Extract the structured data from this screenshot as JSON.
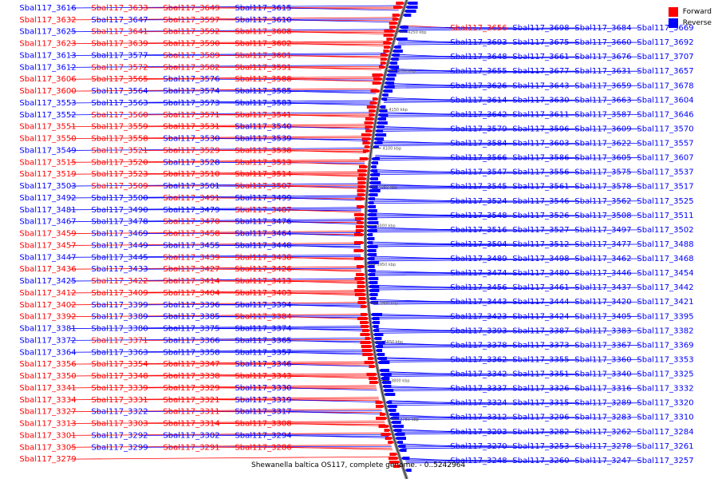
{
  "caption": "Shewanella baltica OS117, complete genome. - 0..5242964",
  "legend": [
    {
      "label": "Forward",
      "color": "#ff0000"
    },
    {
      "label": "Reverse",
      "color": "#0000ff"
    }
  ],
  "tick_labels": [
    "4250 kbp",
    "4200 kbp",
    "4150 kbp",
    "4100 kbp",
    "4050 kbp",
    "4000 kbp",
    "3950 kbp",
    "3900 kbp",
    "3850 kbp",
    "3800 kbp",
    "3750 kbp"
  ],
  "left_labels": [
    {
      "t": "Sbal117_3616",
      "s": "r"
    },
    {
      "t": "Sbal117_3633",
      "s": "f"
    },
    {
      "t": "Sbal117_3649",
      "s": "f"
    },
    {
      "t": "Sbal117_3615",
      "s": "r"
    },
    {
      "t": "Sbal117_3632",
      "s": "f"
    },
    {
      "t": "Sbal117_3647",
      "s": "r"
    },
    {
      "t": "Sbal117_3597",
      "s": "f"
    },
    {
      "t": "Sbal117_3610",
      "s": "r"
    },
    {
      "t": "Sbal117_3625",
      "s": "r"
    },
    {
      "t": "Sbal117_3641",
      "s": "f"
    },
    {
      "t": "Sbal117_3592",
      "s": "f"
    },
    {
      "t": "Sbal117_3608",
      "s": "f"
    },
    {
      "t": "Sbal117_3623",
      "s": "f"
    },
    {
      "t": "Sbal117_3639",
      "s": "f"
    },
    {
      "t": "Sbal117_3590",
      "s": "f"
    },
    {
      "t": "Sbal117_3602",
      "s": "f"
    },
    {
      "t": "Sbal117_3613",
      "s": "r"
    },
    {
      "t": "Sbal117_3577",
      "s": "r"
    },
    {
      "t": "Sbal117_3589",
      "s": "f"
    },
    {
      "t": "Sbal117_3601",
      "s": "f"
    },
    {
      "t": "Sbal117_3612",
      "s": "r"
    },
    {
      "t": "Sbal117_3572",
      "s": "f"
    },
    {
      "t": "Sbal117_3582",
      "s": "f"
    },
    {
      "t": "Sbal117_3591",
      "s": "f"
    },
    {
      "t": "Sbal117_3606",
      "s": "f"
    },
    {
      "t": "Sbal117_3565",
      "s": "f"
    },
    {
      "t": "Sbal117_3576",
      "s": "r"
    },
    {
      "t": "Sbal117_3588",
      "s": "f"
    },
    {
      "t": "Sbal117_3600",
      "s": "f"
    },
    {
      "t": "Sbal117_3564",
      "s": "r"
    },
    {
      "t": "Sbal117_3574",
      "s": "r"
    },
    {
      "t": "Sbal117_3585",
      "s": "r"
    },
    {
      "t": "Sbal117_3553",
      "s": "r"
    },
    {
      "t": "Sbal117_3563",
      "s": "r"
    },
    {
      "t": "Sbal117_3573",
      "s": "r"
    },
    {
      "t": "Sbal117_3583",
      "s": "r"
    },
    {
      "t": "Sbal117_3552",
      "s": "r"
    },
    {
      "t": "Sbal117_3560",
      "s": "f"
    },
    {
      "t": "Sbal117_3571",
      "s": "f"
    },
    {
      "t": "Sbal117_3541",
      "s": "f"
    },
    {
      "t": "Sbal117_3551",
      "s": "f"
    },
    {
      "t": "Sbal117_3559",
      "s": "f"
    },
    {
      "t": "Sbal117_3531",
      "s": "f"
    },
    {
      "t": "Sbal117_3540",
      "s": "r"
    },
    {
      "t": "Sbal117_3550",
      "s": "f"
    },
    {
      "t": "Sbal117_3558",
      "s": "f"
    },
    {
      "t": "Sbal117_3530",
      "s": "r"
    },
    {
      "t": "Sbal117_3539",
      "s": "r"
    },
    {
      "t": "Sbal117_3549",
      "s": "r"
    },
    {
      "t": "Sbal117_3521",
      "s": "f"
    },
    {
      "t": "Sbal117_3529",
      "s": "f"
    },
    {
      "t": "Sbal117_3538",
      "s": "f"
    },
    {
      "t": "Sbal117_3515",
      "s": "f"
    },
    {
      "t": "Sbal117_3520",
      "s": "f"
    },
    {
      "t": "Sbal117_3528",
      "s": "r"
    },
    {
      "t": "Sbal117_3513",
      "s": "f"
    },
    {
      "t": "Sbal117_3519",
      "s": "f"
    },
    {
      "t": "Sbal117_3523",
      "s": "f"
    },
    {
      "t": "Sbal117_3510",
      "s": "f"
    },
    {
      "t": "Sbal117_3514",
      "s": "f"
    },
    {
      "t": "Sbal117_3503",
      "s": "r"
    },
    {
      "t": "Sbal117_3509",
      "s": "f"
    },
    {
      "t": "Sbal117_3501",
      "s": "r"
    },
    {
      "t": "Sbal117_3507",
      "s": "f"
    },
    {
      "t": "Sbal117_3492",
      "s": "r"
    },
    {
      "t": "Sbal117_3500",
      "s": "r"
    },
    {
      "t": "Sbal117_3491",
      "s": "f"
    },
    {
      "t": "Sbal117_3499",
      "s": "r"
    },
    {
      "t": "Sbal117_3481",
      "s": "r"
    },
    {
      "t": "Sbal117_3490",
      "s": "r"
    },
    {
      "t": "Sbal117_3479",
      "s": "r"
    },
    {
      "t": "Sbal117_3487",
      "s": "f"
    },
    {
      "t": "Sbal117_3467",
      "s": "r"
    },
    {
      "t": "Sbal117_3478",
      "s": "r"
    },
    {
      "t": "Sbal117_3470",
      "s": "f"
    },
    {
      "t": "Sbal117_3476",
      "s": "r"
    },
    {
      "t": "Sbal117_3459",
      "s": "f"
    },
    {
      "t": "Sbal117_3469",
      "s": "r"
    },
    {
      "t": "Sbal117_3458",
      "s": "f"
    },
    {
      "t": "Sbal117_3464",
      "s": "r"
    },
    {
      "t": "Sbal117_3457",
      "s": "f"
    },
    {
      "t": "Sbal117_3449",
      "s": "r"
    },
    {
      "t": "Sbal117_3455",
      "s": "r"
    },
    {
      "t": "Sbal117_3448",
      "s": "r"
    },
    {
      "t": "Sbal117_3447",
      "s": "r"
    },
    {
      "t": "Sbal117_3445",
      "s": "r"
    },
    {
      "t": "Sbal117_3439",
      "s": "f"
    },
    {
      "t": "Sbal117_3438",
      "s": "f"
    },
    {
      "t": "Sbal117_3436",
      "s": "f"
    },
    {
      "t": "Sbal117_3433",
      "s": "r"
    },
    {
      "t": "Sbal117_3427",
      "s": "f"
    },
    {
      "t": "Sbal117_3426",
      "s": "f"
    },
    {
      "t": "Sbal117_3425",
      "s": "r"
    },
    {
      "t": "Sbal117_3422",
      "s": "f"
    },
    {
      "t": "Sbal117_3414",
      "s": "f"
    },
    {
      "t": "Sbal117_3413",
      "s": "f"
    },
    {
      "t": "Sbal117_3412",
      "s": "f"
    },
    {
      "t": "Sbal117_3409",
      "s": "f"
    },
    {
      "t": "Sbal117_3404",
      "s": "f"
    },
    {
      "t": "Sbal117_3403",
      "s": "f"
    },
    {
      "t": "Sbal117_3402",
      "s": "f"
    },
    {
      "t": "Sbal117_3399",
      "s": "r"
    },
    {
      "t": "Sbal117_3396",
      "s": "r"
    },
    {
      "t": "Sbal117_3394",
      "s": "r"
    },
    {
      "t": "Sbal117_3392",
      "s": "f"
    },
    {
      "t": "Sbal117_3389",
      "s": "r"
    },
    {
      "t": "Sbal117_3385",
      "s": "r"
    },
    {
      "t": "Sbal117_3384",
      "s": "f"
    },
    {
      "t": "Sbal117_3381",
      "s": "r"
    },
    {
      "t": "Sbal117_3380",
      "s": "r"
    },
    {
      "t": "Sbal117_3375",
      "s": "r"
    },
    {
      "t": "Sbal117_3374",
      "s": "r"
    },
    {
      "t": "Sbal117_3372",
      "s": "r"
    },
    {
      "t": "Sbal117_3371",
      "s": "f"
    },
    {
      "t": "Sbal117_3366",
      "s": "r"
    },
    {
      "t": "Sbal117_3365",
      "s": "r"
    },
    {
      "t": "Sbal117_3364",
      "s": "r"
    },
    {
      "t": "Sbal117_3363",
      "s": "r"
    },
    {
      "t": "Sbal117_3358",
      "s": "r"
    },
    {
      "t": "Sbal117_3357",
      "s": "r"
    },
    {
      "t": "Sbal117_3356",
      "s": "f"
    },
    {
      "t": "Sbal117_3354",
      "s": "f"
    },
    {
      "t": "Sbal117_3347",
      "s": "f"
    },
    {
      "t": "Sbal117_3346",
      "s": "r"
    },
    {
      "t": "Sbal117_3350",
      "s": "f"
    },
    {
      "t": "Sbal117_3348",
      "s": "f"
    },
    {
      "t": "Sbal117_3338",
      "s": "f"
    },
    {
      "t": "Sbal117_3343",
      "s": "f"
    },
    {
      "t": "Sbal117_3341",
      "s": "f"
    },
    {
      "t": "Sbal117_3339",
      "s": "f"
    },
    {
      "t": "Sbal117_3329",
      "s": "f"
    },
    {
      "t": "Sbal117_3330",
      "s": "r"
    },
    {
      "t": "Sbal117_3334",
      "s": "f"
    },
    {
      "t": "Sbal117_3331",
      "s": "f"
    },
    {
      "t": "Sbal117_3321",
      "s": "f"
    },
    {
      "t": "Sbal117_3319",
      "s": "r"
    },
    {
      "t": "Sbal117_3327",
      "s": "f"
    },
    {
      "t": "Sbal117_3322",
      "s": "r"
    },
    {
      "t": "Sbal117_3311",
      "s": "f"
    },
    {
      "t": "Sbal117_3317",
      "s": "r"
    },
    {
      "t": "Sbal117_3313",
      "s": "f"
    },
    {
      "t": "Sbal117_3303",
      "s": "f"
    },
    {
      "t": "Sbal117_3314",
      "s": "f"
    },
    {
      "t": "Sbal117_3308",
      "s": "f"
    },
    {
      "t": "Sbal117_3301",
      "s": "f"
    },
    {
      "t": "Sbal117_3292",
      "s": "r"
    },
    {
      "t": "Sbal117_3302",
      "s": "r"
    },
    {
      "t": "Sbal117_3294",
      "s": "r"
    },
    {
      "t": "Sbal117_3305",
      "s": "f"
    },
    {
      "t": "Sbal117_3299",
      "s": "r"
    },
    {
      "t": "Sbal117_3291",
      "s": "f"
    },
    {
      "t": "Sbal117_3286",
      "s": "f"
    },
    {
      "t": "Sbal117_3279",
      "s": "f"
    }
  ],
  "right_labels": [
    {
      "t": "Sbal117_3656",
      "s": "f"
    },
    {
      "t": "Sbal117_3698",
      "s": "r"
    },
    {
      "t": "Sbal117_3684",
      "s": "r"
    },
    {
      "t": "Sbal117_3669",
      "s": "r"
    },
    {
      "t": "Sbal117_3693",
      "s": "r"
    },
    {
      "t": "Sbal117_3675",
      "s": "r"
    },
    {
      "t": "Sbal117_3660",
      "s": "r"
    },
    {
      "t": "Sbal117_3692",
      "s": "r"
    },
    {
      "t": "Sbal117_3648",
      "s": "r"
    },
    {
      "t": "Sbal117_3661",
      "s": "r"
    },
    {
      "t": "Sbal117_3676",
      "s": "r"
    },
    {
      "t": "Sbal117_3707",
      "s": "r"
    },
    {
      "t": "Sbal117_3655",
      "s": "r"
    },
    {
      "t": "Sbal117_3677",
      "s": "r"
    },
    {
      "t": "Sbal117_3631",
      "s": "r"
    },
    {
      "t": "Sbal117_3657",
      "s": "r"
    },
    {
      "t": "Sbal117_3626",
      "s": "r"
    },
    {
      "t": "Sbal117_3643",
      "s": "r"
    },
    {
      "t": "Sbal117_3659",
      "s": "r"
    },
    {
      "t": "Sbal117_3678",
      "s": "r"
    },
    {
      "t": "Sbal117_3614",
      "s": "r"
    },
    {
      "t": "Sbal117_3630",
      "s": "r"
    },
    {
      "t": "Sbal117_3663",
      "s": "r"
    },
    {
      "t": "Sbal117_3604",
      "s": "r"
    },
    {
      "t": "Sbal117_3642",
      "s": "r"
    },
    {
      "t": "Sbal117_3611",
      "s": "r"
    },
    {
      "t": "Sbal117_3587",
      "s": "r"
    },
    {
      "t": "Sbal117_3646",
      "s": "r"
    },
    {
      "t": "Sbal117_3579",
      "s": "r"
    },
    {
      "t": "Sbal117_3596",
      "s": "r"
    },
    {
      "t": "Sbal117_3609",
      "s": "r"
    },
    {
      "t": "Sbal117_3570",
      "s": "r"
    },
    {
      "t": "Sbal117_3584",
      "s": "r"
    },
    {
      "t": "Sbal117_3603",
      "s": "r"
    },
    {
      "t": "Sbal117_3622",
      "s": "r"
    },
    {
      "t": "Sbal117_3557",
      "s": "r"
    },
    {
      "t": "Sbal117_3566",
      "s": "r"
    },
    {
      "t": "Sbal117_3586",
      "s": "r"
    },
    {
      "t": "Sbal117_3605",
      "s": "r"
    },
    {
      "t": "Sbal117_3607",
      "s": "r"
    },
    {
      "t": "Sbal117_3547",
      "s": "r"
    },
    {
      "t": "Sbal117_3556",
      "s": "r"
    },
    {
      "t": "Sbal117_3575",
      "s": "r"
    },
    {
      "t": "Sbal117_3537",
      "s": "r"
    },
    {
      "t": "Sbal117_3545",
      "s": "r"
    },
    {
      "t": "Sbal117_3561",
      "s": "r"
    },
    {
      "t": "Sbal117_3578",
      "s": "r"
    },
    {
      "t": "Sbal117_3517",
      "s": "r"
    },
    {
      "t": "Sbal117_3524",
      "s": "r"
    },
    {
      "t": "Sbal117_3546",
      "s": "r"
    },
    {
      "t": "Sbal117_3562",
      "s": "r"
    },
    {
      "t": "Sbal117_3525",
      "s": "r"
    },
    {
      "t": "Sbal117_3548",
      "s": "r"
    },
    {
      "t": "Sbal117_3526",
      "s": "r"
    },
    {
      "t": "Sbal117_3508",
      "s": "r"
    },
    {
      "t": "Sbal117_3511",
      "s": "r"
    },
    {
      "t": "Sbal117_3516",
      "s": "r"
    },
    {
      "t": "Sbal117_3527",
      "s": "r"
    },
    {
      "t": "Sbal117_3497",
      "s": "r"
    },
    {
      "t": "Sbal117_3502",
      "s": "r"
    },
    {
      "t": "Sbal117_3504",
      "s": "r"
    },
    {
      "t": "Sbal117_3512",
      "s": "r"
    },
    {
      "t": "Sbal117_3477",
      "s": "r"
    },
    {
      "t": "Sbal117_3488",
      "s": "r"
    },
    {
      "t": "Sbal117_3489",
      "s": "r"
    },
    {
      "t": "Sbal117_3498",
      "s": "r"
    },
    {
      "t": "Sbal117_3462",
      "s": "r"
    },
    {
      "t": "Sbal117_3468",
      "s": "r"
    },
    {
      "t": "Sbal117_3474",
      "s": "r"
    },
    {
      "t": "Sbal117_3480",
      "s": "r"
    },
    {
      "t": "Sbal117_3446",
      "s": "r"
    },
    {
      "t": "Sbal117_3454",
      "s": "r"
    },
    {
      "t": "Sbal117_3456",
      "s": "r"
    },
    {
      "t": "Sbal117_3461",
      "s": "r"
    },
    {
      "t": "Sbal117_3437",
      "s": "r"
    },
    {
      "t": "Sbal117_3442",
      "s": "r"
    },
    {
      "t": "Sbal117_3443",
      "s": "r"
    },
    {
      "t": "Sbal117_3444",
      "s": "r"
    },
    {
      "t": "Sbal117_3420",
      "s": "r"
    },
    {
      "t": "Sbal117_3421",
      "s": "r"
    },
    {
      "t": "Sbal117_3423",
      "s": "r"
    },
    {
      "t": "Sbal117_3424",
      "s": "r"
    },
    {
      "t": "Sbal117_3405",
      "s": "r"
    },
    {
      "t": "Sbal117_3395",
      "s": "r"
    },
    {
      "t": "Sbal117_3393",
      "s": "r"
    },
    {
      "t": "Sbal117_3387",
      "s": "r"
    },
    {
      "t": "Sbal117_3383",
      "s": "r"
    },
    {
      "t": "Sbal117_3382",
      "s": "r"
    },
    {
      "t": "Sbal117_3378",
      "s": "r"
    },
    {
      "t": "Sbal117_3373",
      "s": "r"
    },
    {
      "t": "Sbal117_3367",
      "s": "r"
    },
    {
      "t": "Sbal117_3369",
      "s": "r"
    },
    {
      "t": "Sbal117_3362",
      "s": "r"
    },
    {
      "t": "Sbal117_3355",
      "s": "r"
    },
    {
      "t": "Sbal117_3360",
      "s": "r"
    },
    {
      "t": "Sbal117_3353",
      "s": "r"
    },
    {
      "t": "Sbal117_3342",
      "s": "r"
    },
    {
      "t": "Sbal117_3351",
      "s": "r"
    },
    {
      "t": "Sbal117_3340",
      "s": "r"
    },
    {
      "t": "Sbal117_3325",
      "s": "r"
    },
    {
      "t": "Sbal117_3337",
      "s": "r"
    },
    {
      "t": "Sbal117_3326",
      "s": "r"
    },
    {
      "t": "Sbal117_3316",
      "s": "r"
    },
    {
      "t": "Sbal117_3332",
      "s": "r"
    },
    {
      "t": "Sbal117_3324",
      "s": "r"
    },
    {
      "t": "Sbal117_3315",
      "s": "r"
    },
    {
      "t": "Sbal117_3289",
      "s": "r"
    },
    {
      "t": "Sbal117_3320",
      "s": "r"
    },
    {
      "t": "Sbal117_3312",
      "s": "r"
    },
    {
      "t": "Sbal117_3296",
      "s": "r"
    },
    {
      "t": "Sbal117_3283",
      "s": "r"
    },
    {
      "t": "Sbal117_3310",
      "s": "r"
    },
    {
      "t": "Sbal117_3293",
      "s": "r"
    },
    {
      "t": "Sbal117_3282",
      "s": "r"
    },
    {
      "t": "Sbal117_3262",
      "s": "r"
    },
    {
      "t": "Sbal117_3284",
      "s": "r"
    },
    {
      "t": "Sbal117_3270",
      "s": "r"
    },
    {
      "t": "Sbal117_3253",
      "s": "r"
    },
    {
      "t": "Sbal117_3278",
      "s": "r"
    },
    {
      "t": "Sbal117_3261",
      "s": "r"
    },
    {
      "t": "Sbal117_3248",
      "s": "r"
    },
    {
      "t": "Sbal117_3260",
      "s": "r"
    },
    {
      "t": "Sbal117_3247",
      "s": "r"
    },
    {
      "t": "Sbal117_3257",
      "s": "r"
    }
  ]
}
